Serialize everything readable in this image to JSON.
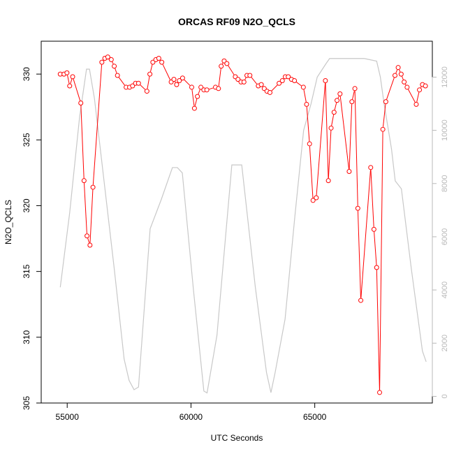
{
  "colors": {
    "n2o_series": "#ff0000",
    "altitude_series": "#c8c8c8",
    "right_axis": "#b8b8b8",
    "frame": "#000000"
  },
  "chart_data": {
    "type": "line",
    "title": "ORCAS RF09 N2O_QCLS",
    "xlabel": "UTC Seconds",
    "ylabel": "N2O_QCLS",
    "xlim": [
      53950,
      69750
    ],
    "ylim": [
      305,
      332.5
    ],
    "y2lim": [
      -250,
      13350
    ],
    "xticks": [
      55000,
      60000,
      65000
    ],
    "yticks": [
      305,
      310,
      315,
      320,
      325,
      330
    ],
    "y2ticks": [
      0,
      2000,
      4000,
      6000,
      8000,
      10000,
      12000
    ],
    "grid": false,
    "legend": "none",
    "series": [
      {
        "axis": "left",
        "style": "line-with-open-circles",
        "x": [
          54720,
          54870,
          54990,
          55100,
          55220,
          55550,
          55680,
          55800,
          55920,
          56040,
          56400,
          56520,
          56640,
          56780,
          56900,
          57030,
          57380,
          57520,
          57640,
          57760,
          57880,
          58220,
          58340,
          58460,
          58580,
          58700,
          58820,
          59200,
          59310,
          59420,
          59530,
          59660,
          60030,
          60140,
          60260,
          60400,
          60520,
          60640,
          60990,
          61110,
          61220,
          61340,
          61450,
          61790,
          61900,
          62020,
          62140,
          62260,
          62380,
          62720,
          62840,
          62960,
          63070,
          63190,
          63560,
          63690,
          63810,
          63930,
          64060,
          64180,
          64540,
          64670,
          64790,
          64930,
          65060,
          65430,
          65550,
          65660,
          65780,
          65900,
          66020,
          66390,
          66500,
          66620,
          66740,
          66860,
          67260,
          67390,
          67500,
          67620,
          67750,
          67870,
          68240,
          68370,
          68490,
          68610,
          68730,
          69100,
          69230,
          69350,
          69470
        ],
        "values": [
          330.0,
          330.0,
          330.1,
          329.1,
          329.8,
          327.8,
          321.9,
          317.7,
          317.0,
          321.4,
          330.9,
          331.2,
          331.3,
          331.1,
          330.6,
          329.9,
          329.0,
          329.0,
          329.1,
          329.3,
          329.3,
          328.7,
          330.0,
          330.9,
          331.1,
          331.2,
          330.9,
          329.4,
          329.6,
          329.2,
          329.5,
          329.7,
          329.0,
          327.4,
          328.3,
          329.0,
          328.8,
          328.8,
          329.0,
          328.9,
          330.6,
          331.0,
          330.8,
          329.8,
          329.6,
          329.4,
          329.4,
          329.9,
          329.9,
          329.1,
          329.2,
          328.9,
          328.7,
          328.6,
          329.3,
          329.5,
          329.8,
          329.8,
          329.6,
          329.5,
          329.0,
          327.7,
          324.7,
          320.4,
          320.6,
          329.5,
          321.9,
          325.9,
          327.1,
          328.0,
          328.5,
          322.6,
          327.9,
          328.9,
          319.8,
          312.8,
          322.9,
          318.2,
          315.3,
          305.8,
          325.8,
          327.9,
          329.9,
          330.5,
          330.0,
          329.4,
          329.0,
          327.7,
          328.8,
          329.2,
          329.1
        ]
      },
      {
        "axis": "right",
        "style": "line",
        "x": [
          54720,
          55100,
          55500,
          55780,
          55900,
          56100,
          56500,
          56900,
          57300,
          57500,
          57700,
          57880,
          58350,
          58800,
          59250,
          59450,
          59650,
          60100,
          60520,
          60650,
          61050,
          61650,
          61850,
          62050,
          62600,
          63050,
          63230,
          63400,
          63800,
          64200,
          64550,
          64850,
          65100,
          65450,
          65600,
          66000,
          66500,
          67000,
          67500,
          67650,
          67800,
          68100,
          68250,
          68500,
          68900,
          69350,
          69500
        ],
        "values": [
          4100,
          6900,
          10500,
          12300,
          12300,
          11200,
          8000,
          4800,
          1400,
          600,
          250,
          350,
          6300,
          7400,
          8600,
          8600,
          8400,
          4000,
          200,
          130,
          2300,
          8700,
          8700,
          8700,
          4100,
          900,
          140,
          900,
          2900,
          6800,
          10000,
          11000,
          12000,
          12500,
          12700,
          12700,
          12700,
          12700,
          12600,
          12000,
          11000,
          9300,
          8100,
          7800,
          4800,
          1700,
          1300
        ]
      }
    ]
  }
}
